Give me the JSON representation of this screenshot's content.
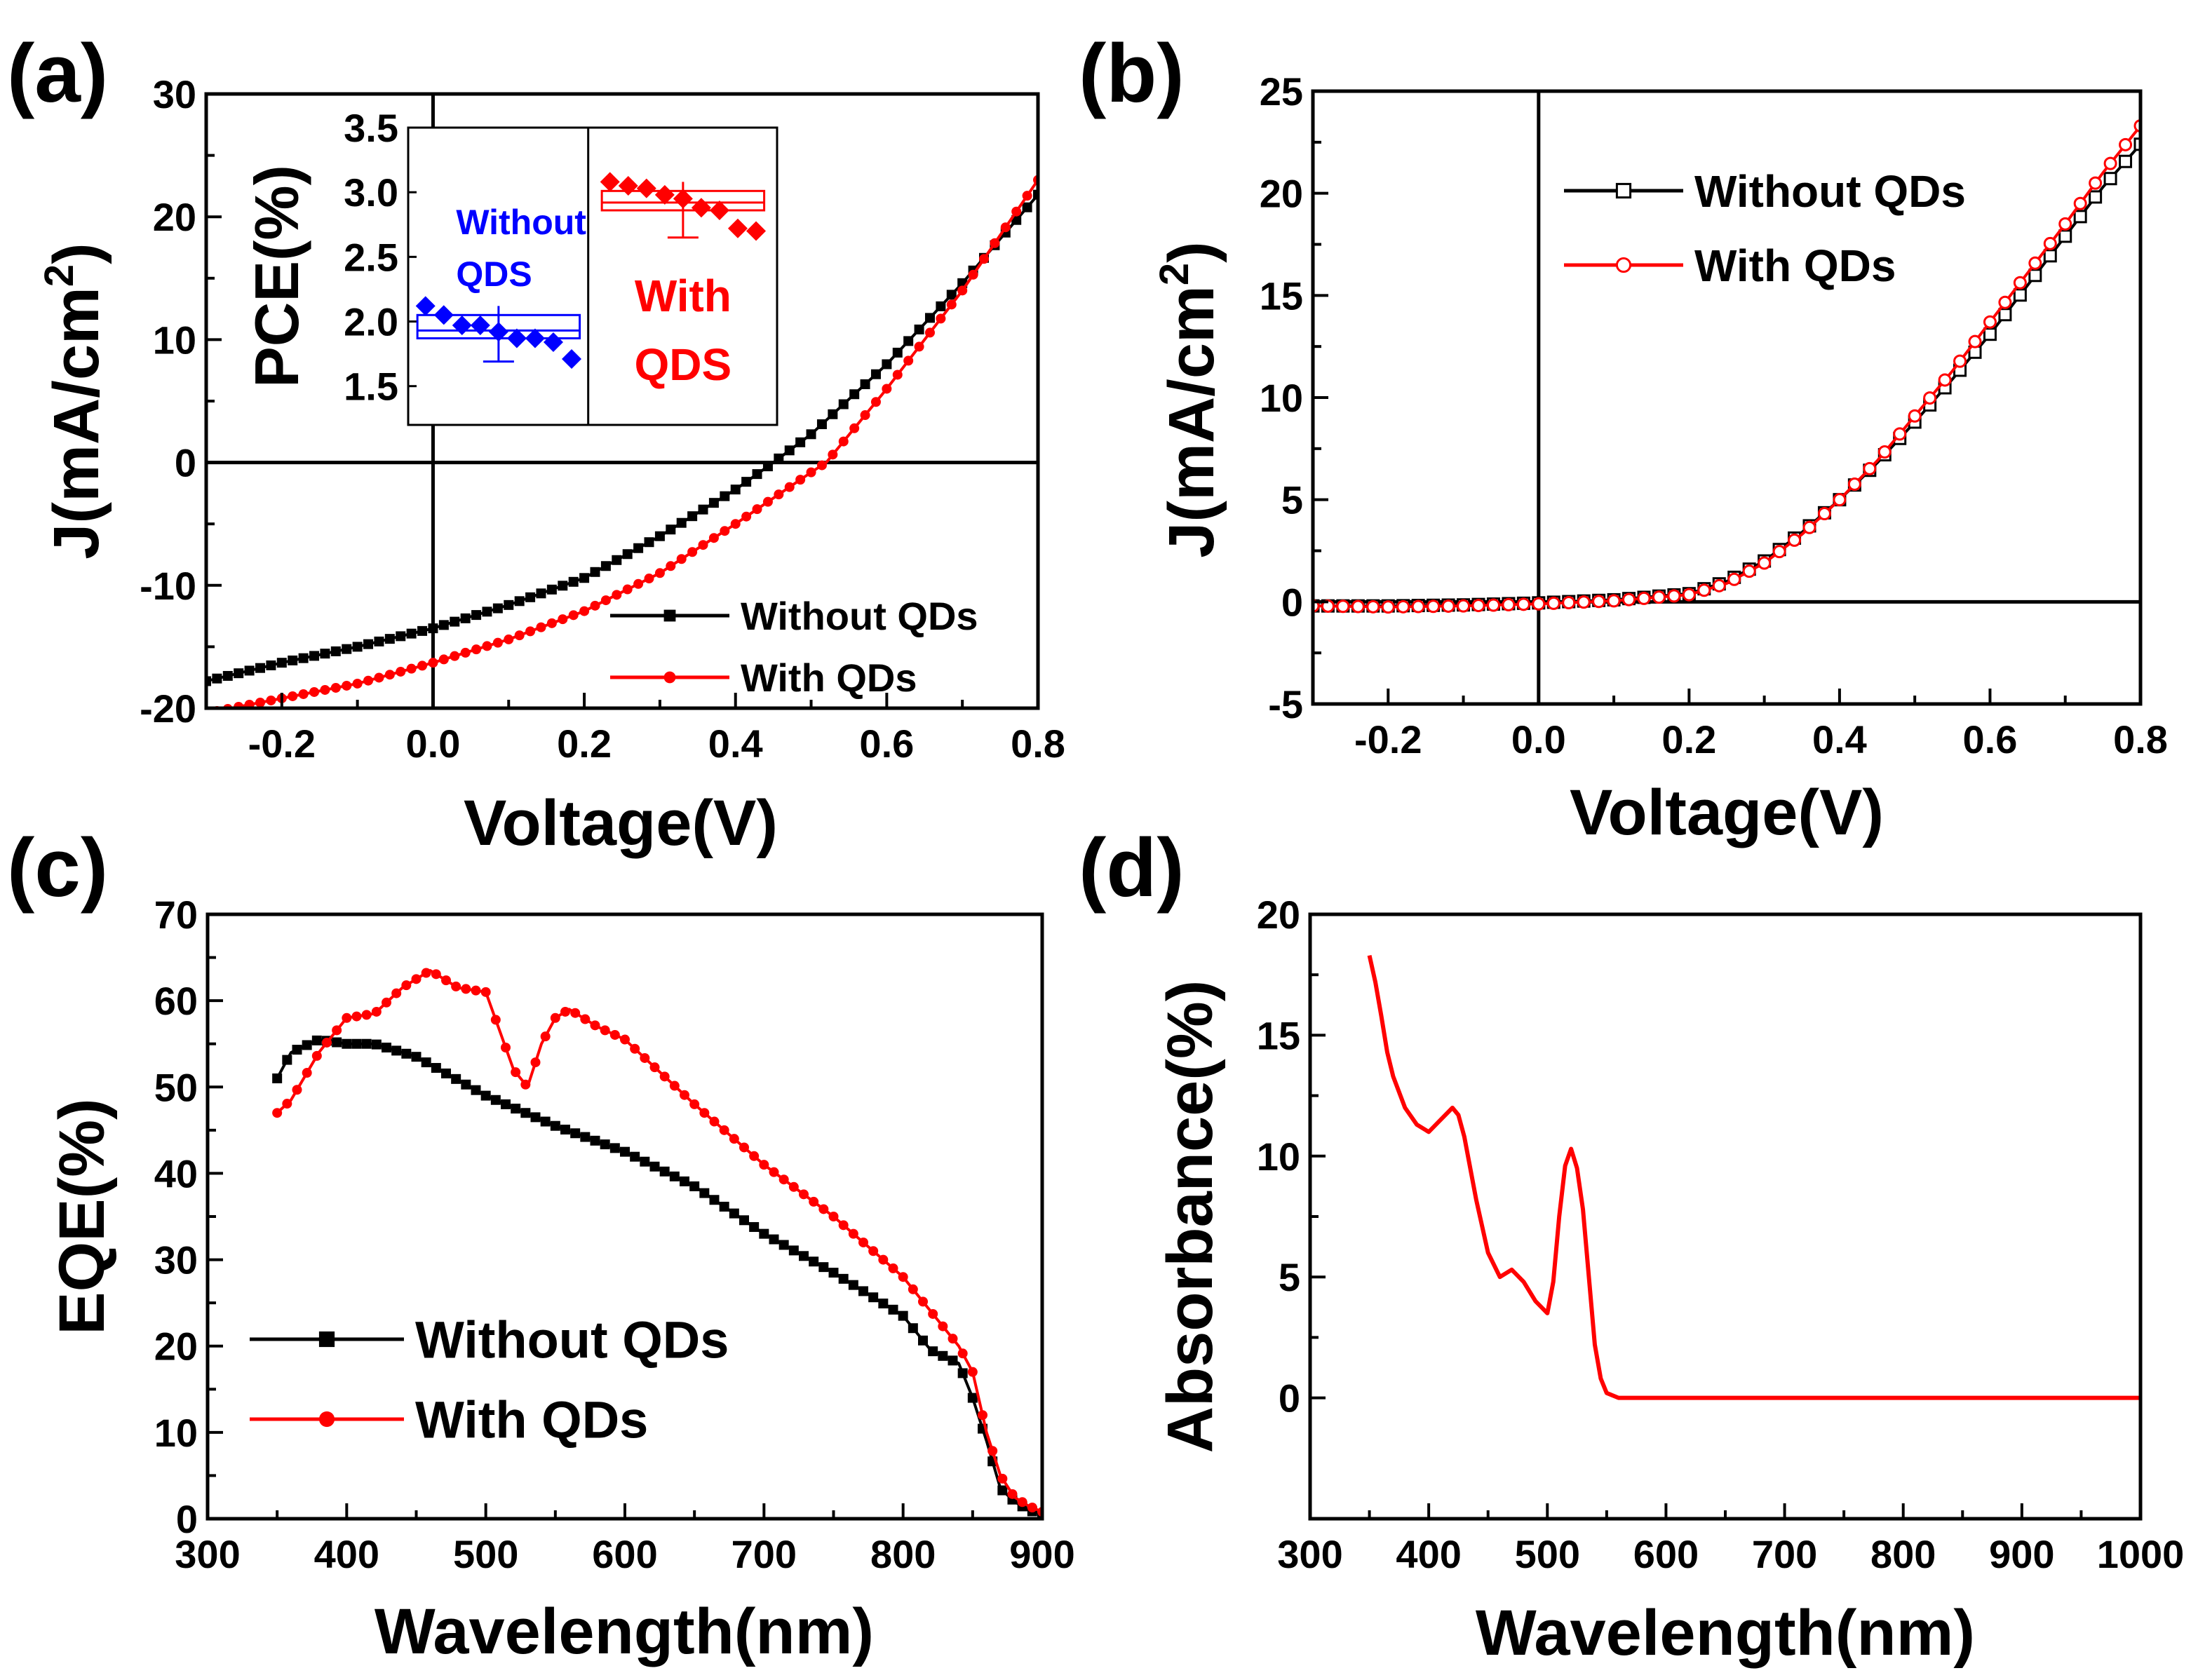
{
  "chart_data": [
    {
      "id": "a",
      "panel_label": "(a)",
      "type": "line",
      "xlabel": "Voltage(V)",
      "ylabel_main": "J(mA/cm",
      "ylabel_sup": "2",
      "ylabel_close": ")",
      "xlim": [
        -0.3,
        0.8
      ],
      "ylim": [
        -20,
        30
      ],
      "xticks": [
        -0.2,
        0.0,
        0.2,
        0.4,
        0.6,
        0.8
      ],
      "xtick_labels": [
        "-0.2",
        "0.0",
        "0.2",
        "0.4",
        "0.6",
        "0.8"
      ],
      "yticks": [
        -20,
        -10,
        0,
        10,
        20,
        30
      ],
      "ytick_labels": [
        "-20",
        "-10",
        "0",
        "10",
        "20",
        "30"
      ],
      "zero_lines": true,
      "legend": "bottom-right",
      "series": [
        {
          "name": "Without QDs",
          "color": "#000000",
          "marker": "square",
          "x": [
            -0.3,
            -0.2,
            -0.1,
            0.0,
            0.1,
            0.2,
            0.3,
            0.4,
            0.45,
            0.5,
            0.6,
            0.7,
            0.8
          ],
          "y": [
            -17.8,
            -16.3,
            -15.0,
            -13.5,
            -11.6,
            -9.4,
            -6.0,
            -2.2,
            0.0,
            2.3,
            8.0,
            14.6,
            21.8
          ]
        },
        {
          "name": "With QDs",
          "color": "#ff0000",
          "marker": "circle",
          "x": [
            -0.3,
            -0.2,
            -0.1,
            0.0,
            0.1,
            0.2,
            0.3,
            0.4,
            0.5,
            0.52,
            0.6,
            0.7,
            0.8
          ],
          "y": [
            -20.4,
            -19.2,
            -18.0,
            -16.3,
            -14.4,
            -12.1,
            -9.0,
            -5.0,
            -0.8,
            0.0,
            6.0,
            14.0,
            23.0
          ]
        }
      ],
      "inset": {
        "ylabel": "PCE(%)",
        "ylim": [
          1.2,
          3.5
        ],
        "yticks": [
          1.5,
          2.0,
          2.5,
          3.0,
          3.5
        ],
        "ytick_labels": [
          "1.5",
          "2.0",
          "2.5",
          "3.0",
          "3.5"
        ],
        "groups": [
          {
            "label_line1": "Without",
            "label_line2": "QDS",
            "color": "#0000ff",
            "mean": 1.93,
            "box_low": 1.87,
            "box_high": 2.05,
            "whisker_low": 1.69,
            "whisker_high": 2.12,
            "points": [
              2.12,
              2.05,
              1.97,
              1.97,
              1.92,
              1.87,
              1.87,
              1.84,
              1.71
            ]
          },
          {
            "label_line1": "With",
            "label_line2": "QDS",
            "color": "#ff0000",
            "mean": 2.92,
            "box_low": 2.86,
            "box_high": 3.01,
            "whisker_low": 2.65,
            "whisker_high": 3.08,
            "points": [
              3.08,
              3.05,
              3.03,
              2.98,
              2.95,
              2.88,
              2.86,
              2.72,
              2.7
            ]
          }
        ]
      }
    },
    {
      "id": "b",
      "panel_label": "(b)",
      "type": "line",
      "xlabel": "Voltage(V)",
      "ylabel_main": "J(mA/cm",
      "ylabel_sup": "2",
      "ylabel_close": ")",
      "xlim": [
        -0.3,
        0.8
      ],
      "ylim": [
        -5,
        25
      ],
      "xticks": [
        -0.2,
        0.0,
        0.2,
        0.4,
        0.6,
        0.8
      ],
      "xtick_labels": [
        "-0.2",
        "0.0",
        "0.2",
        "0.4",
        "0.6",
        "0.8"
      ],
      "yticks": [
        -5,
        0,
        5,
        10,
        15,
        20,
        25
      ],
      "ytick_labels": [
        "-5",
        "0",
        "5",
        "10",
        "15",
        "20",
        "25"
      ],
      "zero_lines": true,
      "legend": "top-right",
      "series": [
        {
          "name": "Without QDs",
          "color": "#000000",
          "marker": "open-square",
          "x": [
            -0.3,
            -0.2,
            -0.1,
            0.0,
            0.1,
            0.2,
            0.25,
            0.3,
            0.35,
            0.4,
            0.45,
            0.5,
            0.55,
            0.6,
            0.65,
            0.7,
            0.75,
            0.8
          ],
          "y": [
            -0.2,
            -0.2,
            -0.15,
            -0.05,
            0.1,
            0.4,
            1.0,
            2.0,
            3.4,
            5.0,
            6.8,
            8.8,
            10.9,
            13.1,
            15.5,
            17.9,
            20.3,
            22.4
          ]
        },
        {
          "name": "With QDs",
          "color": "#ff0000",
          "marker": "open-circle",
          "x": [
            -0.3,
            -0.2,
            -0.1,
            0.0,
            0.1,
            0.2,
            0.25,
            0.3,
            0.35,
            0.4,
            0.45,
            0.5,
            0.55,
            0.6,
            0.65,
            0.7,
            0.75,
            0.8
          ],
          "y": [
            -0.2,
            -0.25,
            -0.2,
            -0.1,
            0.05,
            0.35,
            0.9,
            1.9,
            3.3,
            5.0,
            6.9,
            9.1,
            11.3,
            13.7,
            16.1,
            18.5,
            21.0,
            23.3
          ]
        }
      ]
    },
    {
      "id": "c",
      "panel_label": "(c)",
      "type": "line",
      "xlabel": "Wavelength(nm)",
      "ylabel": "EQE(%)",
      "xlim": [
        300,
        900
      ],
      "ylim": [
        0,
        70
      ],
      "xticks": [
        300,
        400,
        500,
        600,
        700,
        800,
        900
      ],
      "xtick_labels": [
        "300",
        "400",
        "500",
        "600",
        "700",
        "800",
        "900"
      ],
      "yticks": [
        0,
        10,
        20,
        30,
        40,
        50,
        60,
        70
      ],
      "ytick_labels": [
        "0",
        "10",
        "20",
        "30",
        "40",
        "50",
        "60",
        "70"
      ],
      "legend": "bottom-left",
      "series": [
        {
          "name": "Without QDs",
          "color": "#000000",
          "marker": "square",
          "x": [
            350,
            360,
            380,
            400,
            420,
            450,
            500,
            550,
            600,
            650,
            700,
            750,
            800,
            820,
            840,
            850,
            860,
            870,
            880,
            890,
            900
          ],
          "y": [
            51,
            54,
            55.5,
            55,
            55,
            53.5,
            49,
            45.5,
            42.5,
            38.5,
            33,
            28.5,
            23.5,
            19.5,
            18,
            14,
            9,
            3.5,
            2,
            1,
            0.5
          ]
        },
        {
          "name": "With QDs",
          "color": "#ff0000",
          "marker": "circle",
          "x": [
            350,
            360,
            380,
            400,
            420,
            440,
            460,
            480,
            500,
            520,
            530,
            540,
            550,
            560,
            580,
            600,
            650,
            700,
            750,
            800,
            840,
            850,
            860,
            870,
            880,
            890,
            900
          ],
          "y": [
            47,
            48.5,
            54,
            58,
            58.5,
            61.5,
            63.5,
            61.5,
            61,
            52,
            50,
            55,
            58,
            59,
            57,
            55.5,
            48,
            41,
            35,
            28,
            20,
            17,
            10,
            5,
            2.5,
            1.5,
            0.8
          ]
        }
      ]
    },
    {
      "id": "d",
      "panel_label": "(d)",
      "type": "line",
      "xlabel": "Wavelength(nm)",
      "ylabel": "Absorbance(%)",
      "xlim": [
        300,
        1000
      ],
      "ylim": [
        -5,
        20
      ],
      "xticks": [
        300,
        400,
        500,
        600,
        700,
        800,
        900,
        1000
      ],
      "xtick_labels": [
        "300",
        "400",
        "500",
        "600",
        "700",
        "800",
        "900",
        "1000"
      ],
      "yticks": [
        0,
        5,
        10,
        15,
        20
      ],
      "ytick_labels": [
        "0",
        "5",
        "10",
        "15",
        "20"
      ],
      "series": [
        {
          "name": "Absorbance",
          "color": "#ff0000",
          "marker": "none",
          "x": [
            350,
            355,
            360,
            365,
            370,
            380,
            390,
            400,
            410,
            420,
            425,
            430,
            440,
            450,
            460,
            470,
            480,
            490,
            500,
            505,
            510,
            515,
            520,
            525,
            530,
            535,
            540,
            545,
            550,
            560,
            580,
            600,
            700,
            800,
            900,
            1000
          ],
          "y": [
            18.3,
            17.2,
            15.8,
            14.3,
            13.3,
            12.0,
            11.3,
            11.0,
            11.5,
            12.0,
            11.7,
            10.8,
            8.2,
            6.0,
            5.0,
            5.3,
            4.8,
            4.0,
            3.5,
            4.8,
            7.5,
            9.6,
            10.3,
            9.5,
            7.8,
            5.0,
            2.2,
            0.8,
            0.2,
            0.0,
            0.0,
            0.0,
            0.0,
            0.0,
            0.0,
            0.0
          ]
        }
      ]
    }
  ]
}
